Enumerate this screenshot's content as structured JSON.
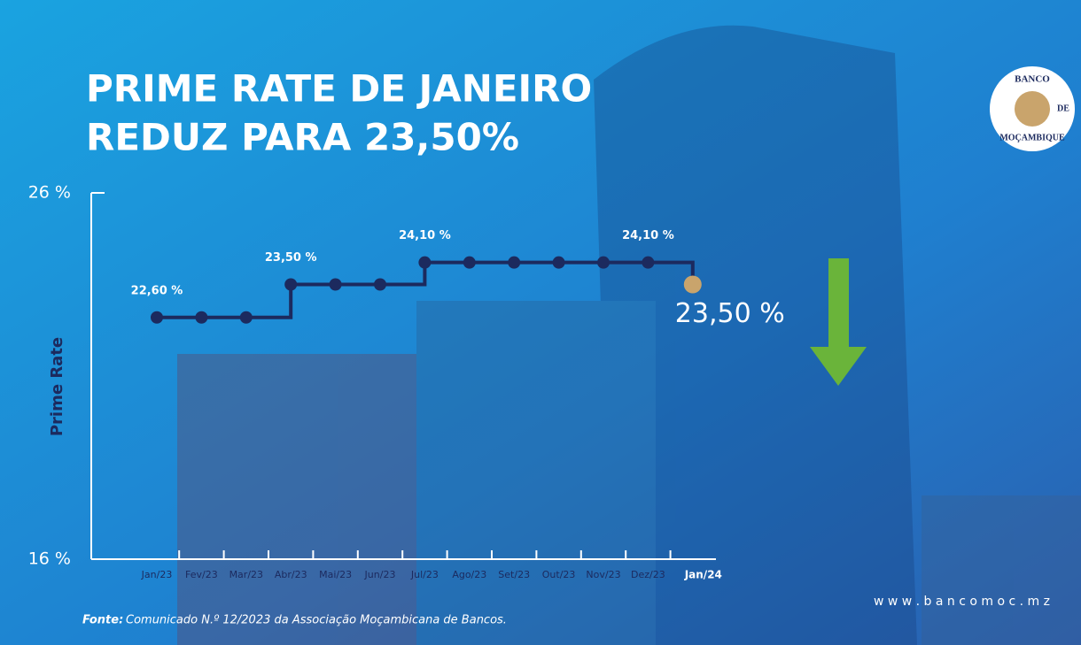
{
  "chart_data": {
    "type": "step",
    "title": [
      "PRIME RATE DE JANEIRO",
      "REDUZ PARA 23,50%"
    ],
    "y_label": "Prime Rate",
    "categories": [
      "Jan/23",
      "Fev/23",
      "Mar/23",
      "Abr/23",
      "Mai/23",
      "Jun/23",
      "Jul/23",
      "Ago/23",
      "Set/23",
      "Out/23",
      "Nov/23",
      "Dez/23",
      "Jan/24"
    ],
    "series": [
      {
        "name": "Prime Rate",
        "color": "#1c2a5e",
        "highlight_color": "#c9a46c",
        "values": [
          22.6,
          22.6,
          22.6,
          23.5,
          23.5,
          23.5,
          24.1,
          24.1,
          24.1,
          24.1,
          24.1,
          24.1,
          23.5
        ],
        "value_labels": [
          "22,60 %",
          null,
          null,
          "23,50 %",
          null,
          null,
          "24,10 %",
          null,
          null,
          null,
          null,
          "24,10 %",
          "23,50 %"
        ]
      }
    ],
    "ylim": [
      16,
      26
    ],
    "yticks": [
      {
        "value": 16,
        "label": "16 %"
      },
      {
        "value": 26,
        "label": "26 %"
      }
    ],
    "source_label": "Fonte:",
    "source": "Comunicado N.º 12/2023 da Associação Moçambicana de Bancos.",
    "website": "w w w . b a n c o m o c . m z",
    "logo": [
      "BANCO",
      "DE",
      "MOÇAMBIQUE"
    ]
  }
}
